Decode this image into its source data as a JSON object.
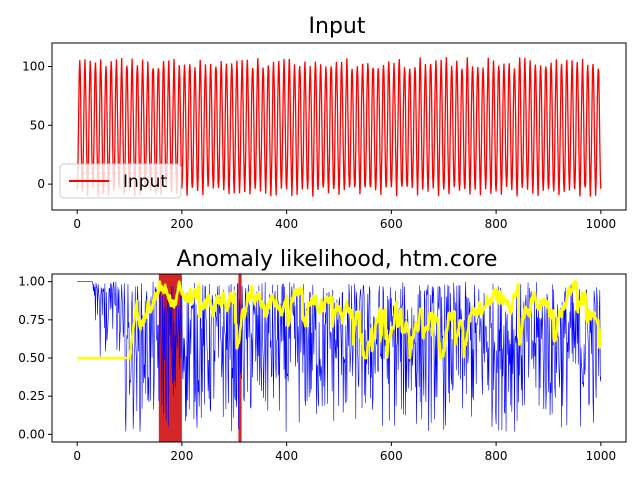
{
  "figure": {
    "background": "#ffffff"
  },
  "chart_data": [
    {
      "type": "line",
      "title": "Input",
      "xlabel": "",
      "ylabel": "",
      "xlim": [
        -48,
        1048
      ],
      "ylim": [
        -22,
        120
      ],
      "xticks": [
        0,
        200,
        400,
        600,
        800,
        1000
      ],
      "yticks": [
        0,
        50,
        100
      ],
      "grid": false,
      "legend": {
        "placement": "lower-left",
        "entries": [
          "Input"
        ]
      },
      "series": [
        {
          "name": "Input",
          "color": "#ff0000",
          "description": "oscillating signal, approx. period 10 samples, range about -12 to 113",
          "x_start": 0,
          "x_end": 1000,
          "step": 1,
          "low": -12,
          "high": 113
        }
      ]
    },
    {
      "type": "line",
      "title": "Anomaly likelihood, htm.core",
      "xlabel": "",
      "ylabel": "",
      "xlim": [
        -48,
        1048
      ],
      "ylim": [
        -0.05,
        1.05
      ],
      "xticks": [
        0,
        200,
        400,
        600,
        800,
        1000
      ],
      "yticks": [
        0.0,
        0.25,
        0.5,
        0.75,
        1.0
      ],
      "grid": false,
      "highlighted_regions": [
        {
          "x_from": 156,
          "x_to": 200,
          "color": "#cc0000"
        },
        {
          "x_from": 308,
          "x_to": 314,
          "color": "#cc0000"
        }
      ],
      "series": [
        {
          "color": "#0000ff",
          "description": "thin noisy line, 1.0 for x<30, then fluctuating between about 0.0 and 1.0",
          "x_start": 0,
          "x_end": 1000
        },
        {
          "color": "#ffff00",
          "description": "thick line, 0.5 for x 0-100, then rises and fluctuates mostly between 0.6 and 1.0",
          "x_start": 0,
          "x_end": 1000,
          "plateau_value": 0.5,
          "plateau_end_x": 100
        }
      ]
    }
  ]
}
